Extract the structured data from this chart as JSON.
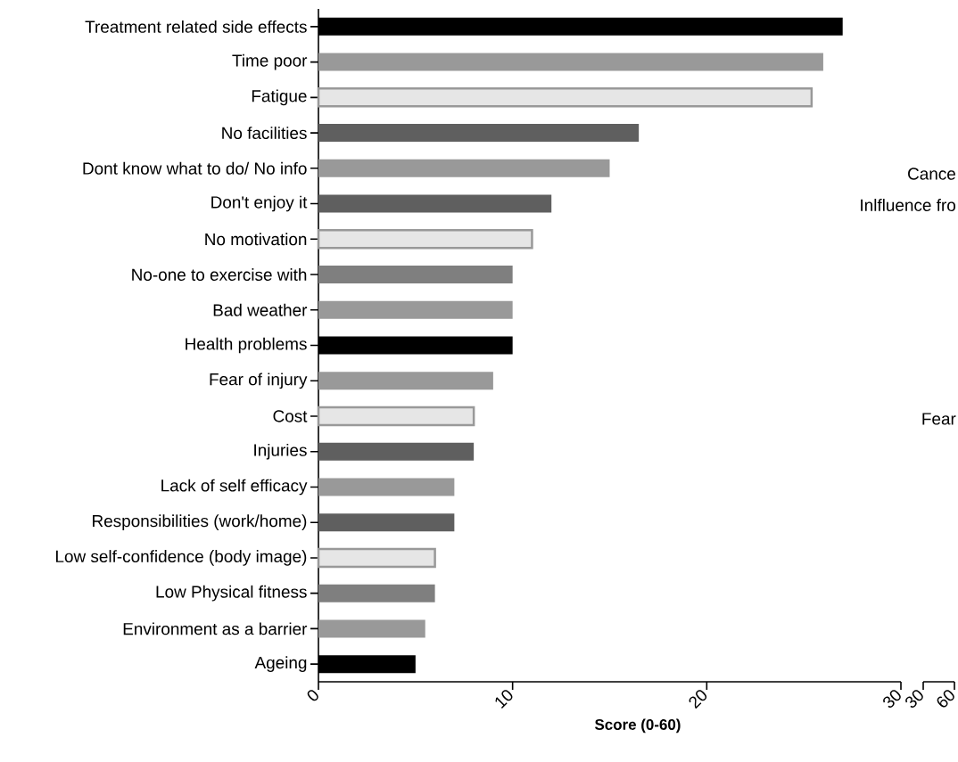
{
  "chart_data": [
    {
      "type": "bar",
      "orientation": "horizontal",
      "xlabel": "Score (0-60)",
      "categories": [
        "Treatment related side effects",
        "Time poor",
        "Fatigue",
        "No facilities",
        "Dont know what to do/ No info",
        "Don't enjoy it",
        "No motivation",
        "No-one to exercise with",
        "Bad weather",
        "Health problems",
        "Fear of injury",
        "Cost",
        "Injuries",
        "Lack of self efficacy",
        "Responsibilities (work/home)",
        "Low self-confidence (body image)",
        "Low Physical fitness",
        "Environment as a barrier",
        "Ageing"
      ],
      "values": [
        27,
        26,
        25.4,
        16.5,
        15,
        12,
        11,
        10,
        10,
        10,
        9,
        8,
        8,
        7,
        7,
        6,
        6,
        5.5,
        5
      ],
      "colors": [
        "#000000",
        "#999999",
        "#e6e6e6",
        "#5f5f5f",
        "#999999",
        "#5f5f5f",
        "#e6e6e6",
        "#7f7f7f",
        "#999999",
        "#000000",
        "#999999",
        "#e6e6e6",
        "#5f5f5f",
        "#999999",
        "#5f5f5f",
        "#e6e6e6",
        "#7f7f7f",
        "#999999",
        "#000000"
      ],
      "xlim": [
        0,
        30
      ],
      "xticks": [
        0,
        10,
        20,
        30
      ],
      "annotations": [
        "Cance",
        "Inlfluence fro",
        "Fear"
      ]
    },
    {
      "type": "bar",
      "orientation": "horizontal",
      "categories": [
        null,
        null,
        null,
        null,
        null,
        null,
        null,
        null,
        null,
        null,
        null,
        null,
        null,
        null,
        null,
        null,
        null,
        null,
        null
      ],
      "values": [
        null,
        null,
        null,
        null,
        null,
        null,
        null,
        null,
        null,
        null,
        null,
        null,
        null,
        null,
        null,
        null,
        null,
        null,
        null
      ],
      "xlim": [
        30,
        60
      ],
      "xticks": [
        30,
        60
      ],
      "tick_labels": "x"
    }
  ]
}
